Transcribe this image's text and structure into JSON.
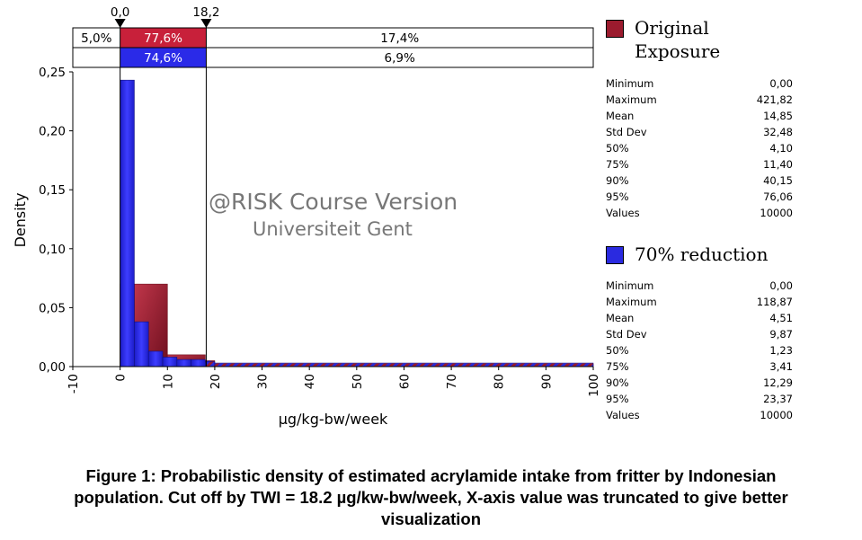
{
  "chart_data": {
    "type": "bar",
    "xlabel": "µg/kg-bw/week",
    "ylabel": "Density",
    "xlim": [
      -10,
      100
    ],
    "ylim": [
      0,
      0.25
    ],
    "xticks": [
      "-10",
      "0",
      "10",
      "20",
      "30",
      "40",
      "50",
      "60",
      "70",
      "80",
      "90",
      "100"
    ],
    "yticks": [
      "0,00",
      "0,05",
      "0,10",
      "0,15",
      "0,20",
      "0,25"
    ],
    "cutoffs": [
      "0,0",
      "18,2"
    ],
    "cutoff_values": [
      0.0,
      18.2
    ],
    "series": [
      {
        "name": "Original Exposure",
        "color": "#9b1b2e",
        "bin_edges": [
          0,
          3,
          10,
          18,
          20,
          100
        ],
        "values": [
          0.07,
          0.07,
          0.01,
          0.005,
          0.002
        ],
        "bands": [
          "5,0%",
          "77,6%",
          "17,4%"
        ]
      },
      {
        "name": "70% reduction",
        "color": "#2a2ae0",
        "bin_edges": [
          0,
          3,
          6,
          9,
          12,
          15,
          18,
          20,
          100
        ],
        "values": [
          0.243,
          0.038,
          0.013,
          0.008,
          0.006,
          0.006,
          0.004,
          0.003
        ],
        "bands": [
          "74,6%",
          "6,9%"
        ]
      }
    ]
  },
  "legend": {
    "original": {
      "line1": "Original",
      "line2": "Exposure",
      "color": "#9b1b2e"
    },
    "reduction": {
      "label": "70% reduction",
      "color": "#2a2ae0"
    }
  },
  "stats": {
    "original": [
      {
        "label": "Minimum",
        "value": "0,00"
      },
      {
        "label": "Maximum",
        "value": "421,82"
      },
      {
        "label": "Mean",
        "value": "14,85"
      },
      {
        "label": "Std Dev",
        "value": "32,48"
      },
      {
        "label": "50%",
        "value": "4,10"
      },
      {
        "label": "75%",
        "value": "11,40"
      },
      {
        "label": "90%",
        "value": "40,15"
      },
      {
        "label": "95%",
        "value": "76,06"
      },
      {
        "label": "Values",
        "value": "10000"
      }
    ],
    "reduction": [
      {
        "label": "Minimum",
        "value": "0,00"
      },
      {
        "label": "Maximum",
        "value": "118,87"
      },
      {
        "label": "Mean",
        "value": "4,51"
      },
      {
        "label": "Std Dev",
        "value": "9,87"
      },
      {
        "label": "50%",
        "value": "1,23"
      },
      {
        "label": "75%",
        "value": "3,41"
      },
      {
        "label": "90%",
        "value": "12,29"
      },
      {
        "label": "95%",
        "value": "23,37"
      },
      {
        "label": "Values",
        "value": "10000"
      }
    ]
  },
  "watermark": {
    "line1": "@RISK Course Version",
    "line2": "Universiteit Gent"
  },
  "caption": {
    "line1": "Figure 1: Probabilistic density of estimated acrylamide intake from fritter by Indonesian",
    "line2": "population. Cut off by TWI = 18.2 µg/kw-bw/week, X-axis value was truncated to give better",
    "line3": "visualization"
  }
}
